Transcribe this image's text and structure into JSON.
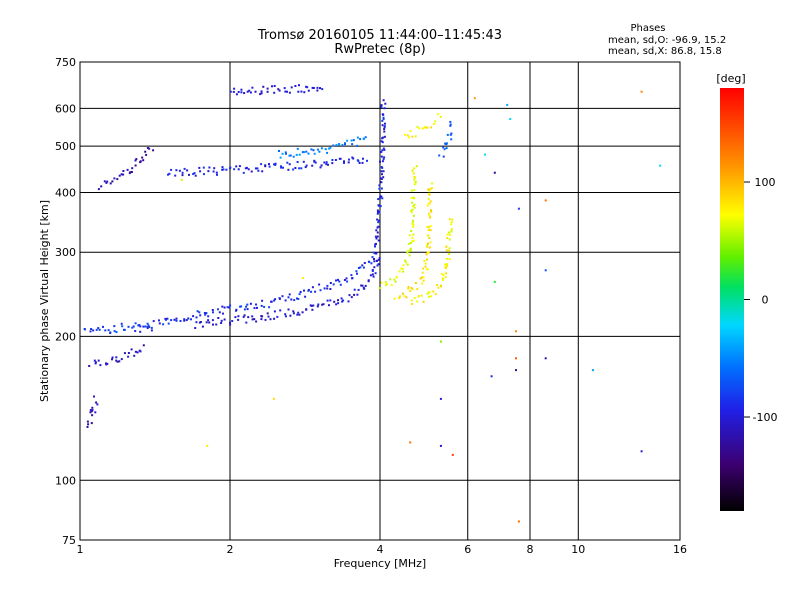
{
  "chart_data": {
    "type": "scatter",
    "title_line1": "Tromsø 20160105 11:44:00–11:45:43",
    "title_line2": "RwPretec (8p)",
    "xlabel": "Frequency [MHz]",
    "ylabel": "Stationary phase Virtual Height [km]",
    "x_scale": "log",
    "y_scale": "log",
    "xlim": [
      1,
      16
    ],
    "ylim": [
      75,
      750
    ],
    "x_ticks": [
      1,
      2,
      4,
      6,
      8,
      10,
      16
    ],
    "y_ticks": [
      75,
      100,
      200,
      300,
      400,
      500,
      600,
      750
    ],
    "grid": true,
    "phases": {
      "header": "Phases",
      "line_o": "mean, sd,O:  -96.9, 15.2",
      "line_x": "mean, sd,X:  86.8, 15.8"
    },
    "colorbar": {
      "label": "[deg]",
      "range": [
        -180,
        180
      ],
      "ticks": [
        100,
        0,
        -100
      ]
    },
    "traces": [
      {
        "x": [
          1.32,
          1.5,
          1.7,
          2.0,
          2.4,
          2.9,
          3.4,
          3.85,
          3.95
        ],
        "y": [
          208,
          215,
          222,
          228,
          235,
          248,
          262,
          285,
          320
        ],
        "phase": -90
      },
      {
        "x": [
          1.7,
          2.2,
          2.8,
          3.4,
          3.85,
          4.0
        ],
        "y": [
          212,
          218,
          226,
          240,
          262,
          300
        ],
        "phase": -105
      },
      {
        "x": [
          3.95,
          4.02,
          4.05,
          4.07
        ],
        "y": [
          320,
          400,
          500,
          630
        ],
        "phase": -95
      },
      {
        "x": [
          4.0,
          4.3,
          4.55,
          4.65,
          4.7
        ],
        "y": [
          255,
          265,
          285,
          330,
          460
        ],
        "phase": 65
      },
      {
        "x": [
          4.3,
          4.6,
          4.9,
          5.0,
          5.05
        ],
        "y": [
          240,
          250,
          265,
          300,
          420
        ],
        "phase": 80
      },
      {
        "x": [
          4.6,
          5.0,
          5.3,
          5.45,
          5.55
        ],
        "y": [
          235,
          242,
          255,
          285,
          360
        ],
        "phase": 75
      },
      {
        "x": [
          1.5,
          2.0,
          2.7,
          3.3,
          3.8
        ],
        "y": [
          440,
          445,
          455,
          465,
          470
        ],
        "phase": -95
      },
      {
        "x": [
          2.5,
          3.0,
          3.4,
          3.8
        ],
        "y": [
          480,
          490,
          500,
          520
        ],
        "phase": -55
      },
      {
        "x": [
          1.1,
          1.25,
          1.4
        ],
        "y": [
          410,
          440,
          500
        ],
        "phase": -120
      },
      {
        "x": [
          1.02,
          1.12,
          1.25,
          1.4
        ],
        "y": [
          208,
          206,
          210,
          208
        ],
        "phase": -80
      },
      {
        "x": [
          1.05,
          1.2,
          1.35
        ],
        "y": [
          175,
          180,
          190
        ],
        "phase": -110
      },
      {
        "x": [
          1.04,
          1.08
        ],
        "y": [
          130,
          150
        ],
        "phase": -115
      },
      {
        "x": [
          2.0,
          2.4,
          2.8,
          3.1
        ],
        "y": [
          650,
          655,
          660,
          660
        ],
        "phase": -105
      },
      {
        "x": [
          4.5,
          4.8,
          5.1,
          5.3
        ],
        "y": [
          520,
          540,
          560,
          580
        ],
        "phase": 75
      },
      {
        "x": [
          5.3,
          5.5,
          5.55
        ],
        "y": [
          480,
          520,
          560
        ],
        "phase": -70
      }
    ],
    "points": [
      {
        "x": 1.6,
        "y": 425,
        "phase": 60
      },
      {
        "x": 1.8,
        "y": 118,
        "phase": 80
      },
      {
        "x": 2.45,
        "y": 148,
        "phase": 85
      },
      {
        "x": 2.8,
        "y": 265,
        "phase": 80
      },
      {
        "x": 4.6,
        "y": 120,
        "phase": 130
      },
      {
        "x": 5.3,
        "y": 118,
        "phase": -110
      },
      {
        "x": 5.3,
        "y": 148,
        "phase": -100
      },
      {
        "x": 5.3,
        "y": 195,
        "phase": 40
      },
      {
        "x": 5.6,
        "y": 113,
        "phase": 150
      },
      {
        "x": 6.2,
        "y": 630,
        "phase": 110
      },
      {
        "x": 6.5,
        "y": 480,
        "phase": -20
      },
      {
        "x": 6.7,
        "y": 165,
        "phase": -90
      },
      {
        "x": 6.8,
        "y": 260,
        "phase": 20
      },
      {
        "x": 6.8,
        "y": 440,
        "phase": -130
      },
      {
        "x": 7.2,
        "y": 610,
        "phase": -40
      },
      {
        "x": 7.3,
        "y": 570,
        "phase": -20
      },
      {
        "x": 7.5,
        "y": 170,
        "phase": -125
      },
      {
        "x": 7.5,
        "y": 180,
        "phase": 140
      },
      {
        "x": 7.5,
        "y": 205,
        "phase": 120
      },
      {
        "x": 7.6,
        "y": 370,
        "phase": -80
      },
      {
        "x": 7.6,
        "y": 82,
        "phase": 130
      },
      {
        "x": 8.6,
        "y": 180,
        "phase": -120
      },
      {
        "x": 8.6,
        "y": 275,
        "phase": -70
      },
      {
        "x": 8.6,
        "y": 385,
        "phase": 130
      },
      {
        "x": 10.7,
        "y": 170,
        "phase": -40
      },
      {
        "x": 13.4,
        "y": 650,
        "phase": 120
      },
      {
        "x": 13.4,
        "y": 115,
        "phase": -100
      },
      {
        "x": 14.6,
        "y": 455,
        "phase": -20
      }
    ]
  }
}
